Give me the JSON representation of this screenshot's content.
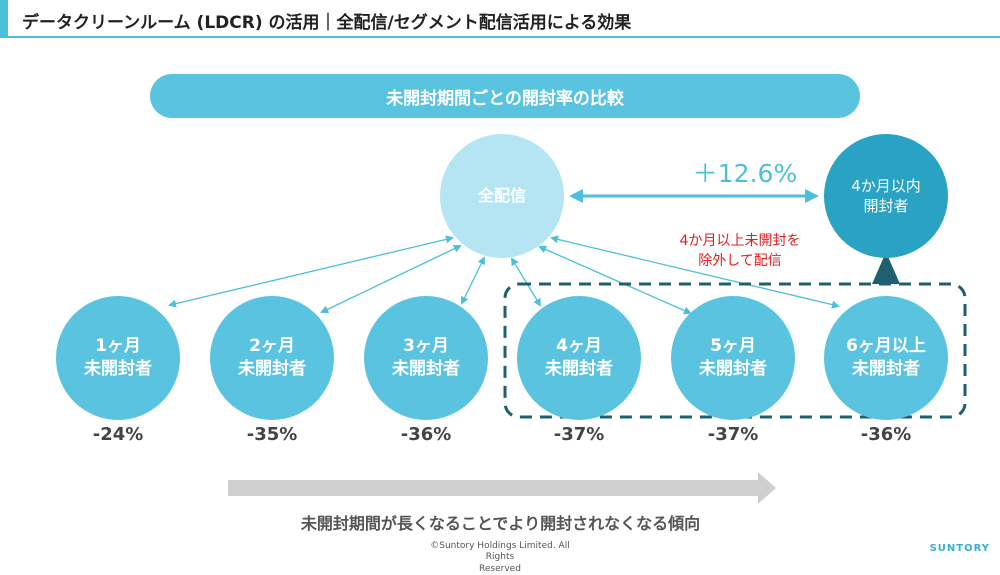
{
  "header": {
    "title": "データクリーンルーム (LDCR) の活用｜全配信/セグメント配信活用による効果"
  },
  "banner": {
    "label": "未開封期間ごとの開封率の比較"
  },
  "nodes": {
    "all": {
      "label": "全配信"
    },
    "within4": {
      "line1": "4か月以内",
      "line2": "開封者"
    },
    "segments": [
      {
        "line1": "1ヶ月",
        "line2": "未開封者",
        "change": "-24%"
      },
      {
        "line1": "2ヶ月",
        "line2": "未開封者",
        "change": "-35%"
      },
      {
        "line1": "3ヶ月",
        "line2": "未開封者",
        "change": "-36%"
      },
      {
        "line1": "4ヶ月",
        "line2": "未開封者",
        "change": "-37%"
      },
      {
        "line1": "5ヶ月",
        "line2": "未開封者",
        "change": "-37%"
      },
      {
        "line1": "6ヶ月以上",
        "line2": "未開封者",
        "change": "-36%"
      }
    ]
  },
  "comparison": {
    "delta": "＋12.6%",
    "exclude_line1": "4か月以上未開封を",
    "exclude_line2": "除外して配信"
  },
  "trend": {
    "label": "未開封期間が長くなることでより開封されなくなる傾向"
  },
  "footer": {
    "copyright_line1": "©Suntory Holdings Limited. All Rights",
    "copyright_line2": "Reserved",
    "brand": "SUNTORY"
  },
  "colors": {
    "accent": "#4bbfdc",
    "segment": "#5ac3e0",
    "all_delivery": "#b5e4f2",
    "within4": "#2aa2c3",
    "group_border": "#1f5f70",
    "exclude_text": "#e02020",
    "trend_arrow": "#cfcfcf"
  }
}
